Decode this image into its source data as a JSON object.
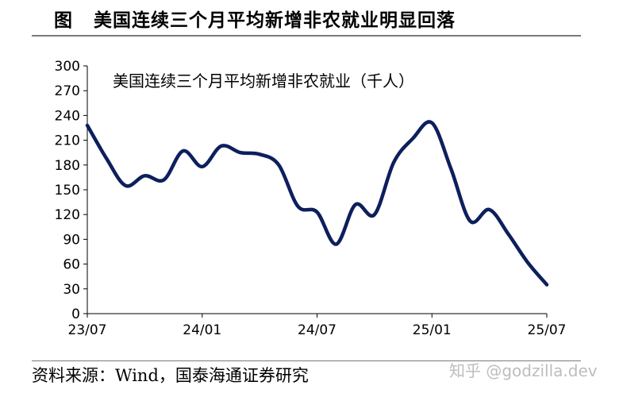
{
  "figure": {
    "label": "图",
    "title": "美国连续三个月平均新增非农就业明显回落",
    "source": "资料来源：Wind，国泰海通证券研究",
    "watermark": "知乎 @godzilla.dev"
  },
  "chart_data": {
    "type": "line",
    "title": "美国连续三个月平均新增非农就业（千人）",
    "xlabel": "",
    "ylabel": "",
    "ylim": [
      0,
      300
    ],
    "yticks": [
      0,
      30,
      60,
      90,
      120,
      150,
      180,
      210,
      240,
      270,
      300
    ],
    "xlim": [
      "2023-07",
      "2025-07"
    ],
    "xticks": [
      "23/07",
      "24/01",
      "24/07",
      "25/01",
      "25/07"
    ],
    "grid": false,
    "color": "#0d1f5c",
    "series": [
      {
        "x": [
          "2023-07",
          "2023-08",
          "2023-09",
          "2023-10",
          "2023-11",
          "2023-12",
          "2024-01",
          "2024-02",
          "2024-03",
          "2024-04",
          "2024-05",
          "2024-06",
          "2024-07",
          "2024-08",
          "2024-09",
          "2024-10",
          "2024-11",
          "2024-12",
          "2025-01",
          "2025-02",
          "2025-03",
          "2025-04",
          "2025-05",
          "2025-06",
          "2025-07"
        ],
        "values": [
          228,
          188,
          155,
          167,
          162,
          197,
          178,
          203,
          195,
          193,
          180,
          130,
          123,
          84,
          132,
          120,
          183,
          212,
          231,
          175,
          112,
          126,
          96,
          62,
          35
        ]
      }
    ]
  }
}
